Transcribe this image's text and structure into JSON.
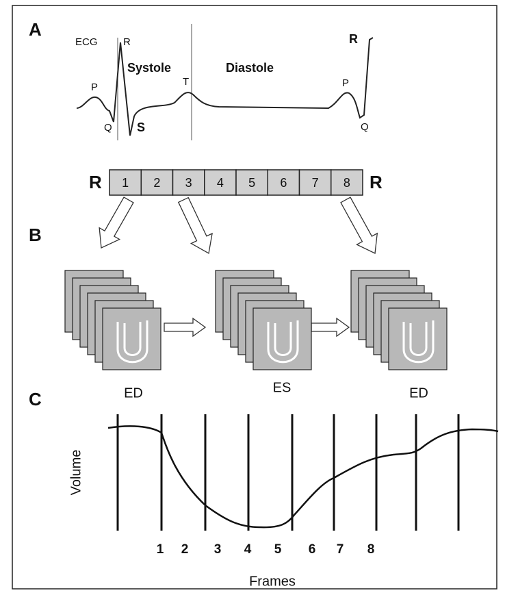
{
  "panel_a": {
    "label": "A",
    "ecg_label": "ECG",
    "waves": {
      "p1": "P",
      "q1": "Q",
      "r1": "R",
      "s": "S",
      "t": "T",
      "p2": "P",
      "q2": "Q",
      "r2": "R"
    },
    "phases": [
      "Systole",
      "Diastole"
    ],
    "strip": {
      "start": "R",
      "frames": [
        "1",
        "2",
        "3",
        "4",
        "5",
        "6",
        "7",
        "8"
      ],
      "end": "R"
    }
  },
  "panel_b": {
    "label": "B",
    "stacks": [
      "ED",
      "ES",
      "ED"
    ]
  },
  "panel_c": {
    "label": "C",
    "y_label": "Volume",
    "x_label": "Frames",
    "frame_ticks": [
      "1",
      "2",
      "3",
      "4",
      "5",
      "6",
      "7",
      "8"
    ]
  }
}
